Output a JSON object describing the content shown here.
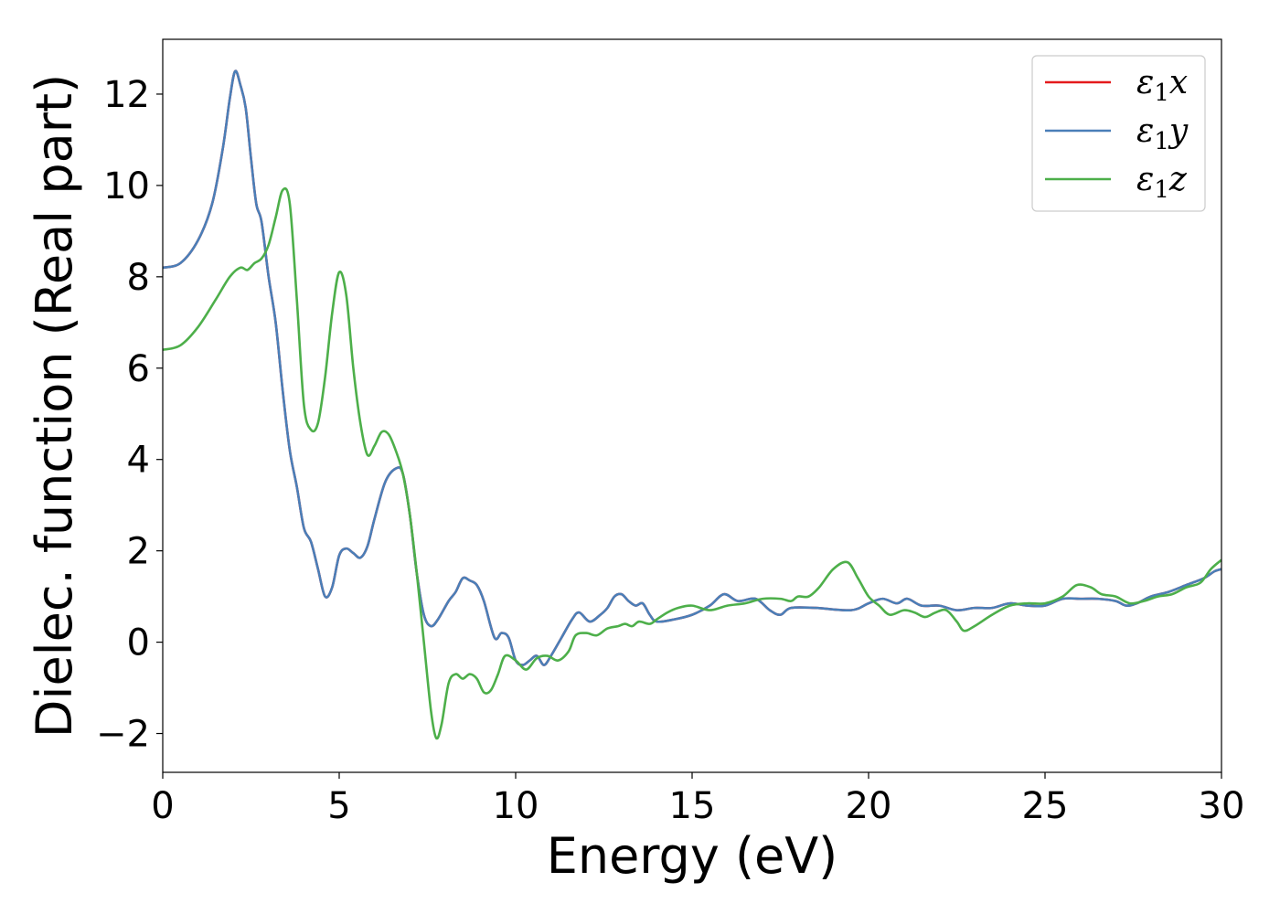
{
  "chart_data": {
    "type": "line",
    "xlabel": "Energy (eV)",
    "ylabel": "Dielec. function (Real part)",
    "xlim": [
      0,
      30
    ],
    "ylim": [
      -2.85,
      13.2
    ],
    "xticks": [
      0,
      5,
      10,
      15,
      20,
      25,
      30
    ],
    "xtick_labels": [
      "0",
      "5",
      "10",
      "15",
      "20",
      "25",
      "30"
    ],
    "yticks": [
      -2,
      0,
      2,
      4,
      6,
      8,
      10,
      12
    ],
    "ytick_labels": [
      "−2",
      "0",
      "2",
      "4",
      "6",
      "8",
      "10",
      "12"
    ],
    "grid": false,
    "legend_position": "top-right",
    "series": [
      {
        "name": "ε1x",
        "legend": {
          "base": "ε",
          "sub": "1",
          "tail": "x"
        },
        "color": "#e41a1c",
        "points": [
          [
            0,
            8.2
          ],
          [
            0.5,
            8.3
          ],
          [
            1.0,
            8.8
          ],
          [
            1.4,
            9.6
          ],
          [
            1.7,
            10.8
          ],
          [
            1.9,
            11.9
          ],
          [
            2.05,
            12.5
          ],
          [
            2.2,
            12.2
          ],
          [
            2.35,
            11.7
          ],
          [
            2.5,
            10.6
          ],
          [
            2.65,
            9.6
          ],
          [
            2.8,
            9.2
          ],
          [
            3.0,
            8.0
          ],
          [
            3.2,
            7.0
          ],
          [
            3.4,
            5.5
          ],
          [
            3.6,
            4.2
          ],
          [
            3.8,
            3.4
          ],
          [
            4.0,
            2.5
          ],
          [
            4.2,
            2.2
          ],
          [
            4.4,
            1.6
          ],
          [
            4.6,
            1.0
          ],
          [
            4.8,
            1.2
          ],
          [
            5.0,
            1.9
          ],
          [
            5.2,
            2.05
          ],
          [
            5.4,
            1.95
          ],
          [
            5.6,
            1.85
          ],
          [
            5.8,
            2.1
          ],
          [
            6.0,
            2.7
          ],
          [
            6.3,
            3.5
          ],
          [
            6.6,
            3.8
          ],
          [
            6.8,
            3.7
          ],
          [
            7.0,
            2.8
          ],
          [
            7.2,
            1.5
          ],
          [
            7.4,
            0.6
          ],
          [
            7.6,
            0.35
          ],
          [
            7.8,
            0.5
          ],
          [
            8.1,
            0.9
          ],
          [
            8.3,
            1.1
          ],
          [
            8.5,
            1.4
          ],
          [
            8.7,
            1.35
          ],
          [
            8.9,
            1.25
          ],
          [
            9.1,
            0.9
          ],
          [
            9.4,
            0.1
          ],
          [
            9.6,
            0.2
          ],
          [
            9.8,
            0.1
          ],
          [
            10.0,
            -0.4
          ],
          [
            10.2,
            -0.5
          ],
          [
            10.4,
            -0.4
          ],
          [
            10.6,
            -0.3
          ],
          [
            10.8,
            -0.5
          ],
          [
            11.0,
            -0.3
          ],
          [
            11.3,
            0.1
          ],
          [
            11.6,
            0.5
          ],
          [
            11.8,
            0.65
          ],
          [
            12.1,
            0.45
          ],
          [
            12.4,
            0.6
          ],
          [
            12.6,
            0.75
          ],
          [
            12.8,
            1.0
          ],
          [
            13.0,
            1.05
          ],
          [
            13.2,
            0.9
          ],
          [
            13.4,
            0.8
          ],
          [
            13.6,
            0.85
          ],
          [
            13.8,
            0.6
          ],
          [
            14.0,
            0.45
          ],
          [
            14.5,
            0.5
          ],
          [
            15.0,
            0.6
          ],
          [
            15.5,
            0.8
          ],
          [
            15.9,
            1.05
          ],
          [
            16.3,
            0.9
          ],
          [
            16.8,
            0.95
          ],
          [
            17.2,
            0.7
          ],
          [
            17.5,
            0.6
          ],
          [
            17.8,
            0.75
          ],
          [
            18.5,
            0.75
          ],
          [
            19.5,
            0.7
          ],
          [
            20.0,
            0.85
          ],
          [
            20.4,
            0.95
          ],
          [
            20.8,
            0.85
          ],
          [
            21.1,
            0.95
          ],
          [
            21.5,
            0.8
          ],
          [
            22.0,
            0.8
          ],
          [
            22.5,
            0.7
          ],
          [
            23.0,
            0.75
          ],
          [
            23.5,
            0.75
          ],
          [
            24.0,
            0.85
          ],
          [
            24.5,
            0.8
          ],
          [
            25.0,
            0.8
          ],
          [
            25.5,
            0.95
          ],
          [
            26.0,
            0.95
          ],
          [
            26.5,
            0.95
          ],
          [
            27.0,
            0.9
          ],
          [
            27.3,
            0.8
          ],
          [
            27.6,
            0.85
          ],
          [
            28.0,
            1.0
          ],
          [
            28.5,
            1.1
          ],
          [
            29.0,
            1.25
          ],
          [
            29.5,
            1.4
          ],
          [
            29.8,
            1.55
          ],
          [
            30.0,
            1.6
          ]
        ]
      },
      {
        "name": "ε1y",
        "legend": {
          "base": "ε",
          "sub": "1",
          "tail": "y"
        },
        "color": "#4a7fb8",
        "points": [
          [
            0,
            8.2
          ],
          [
            0.5,
            8.3
          ],
          [
            1.0,
            8.8
          ],
          [
            1.4,
            9.6
          ],
          [
            1.7,
            10.8
          ],
          [
            1.9,
            11.9
          ],
          [
            2.05,
            12.5
          ],
          [
            2.2,
            12.2
          ],
          [
            2.35,
            11.7
          ],
          [
            2.5,
            10.6
          ],
          [
            2.65,
            9.6
          ],
          [
            2.8,
            9.2
          ],
          [
            3.0,
            8.0
          ],
          [
            3.2,
            7.0
          ],
          [
            3.4,
            5.5
          ],
          [
            3.6,
            4.2
          ],
          [
            3.8,
            3.4
          ],
          [
            4.0,
            2.5
          ],
          [
            4.2,
            2.2
          ],
          [
            4.4,
            1.6
          ],
          [
            4.6,
            1.0
          ],
          [
            4.8,
            1.2
          ],
          [
            5.0,
            1.9
          ],
          [
            5.2,
            2.05
          ],
          [
            5.4,
            1.95
          ],
          [
            5.6,
            1.85
          ],
          [
            5.8,
            2.1
          ],
          [
            6.0,
            2.7
          ],
          [
            6.3,
            3.5
          ],
          [
            6.6,
            3.8
          ],
          [
            6.8,
            3.7
          ],
          [
            7.0,
            2.8
          ],
          [
            7.2,
            1.5
          ],
          [
            7.4,
            0.6
          ],
          [
            7.6,
            0.35
          ],
          [
            7.8,
            0.5
          ],
          [
            8.1,
            0.9
          ],
          [
            8.3,
            1.1
          ],
          [
            8.5,
            1.4
          ],
          [
            8.7,
            1.35
          ],
          [
            8.9,
            1.25
          ],
          [
            9.1,
            0.9
          ],
          [
            9.4,
            0.1
          ],
          [
            9.6,
            0.2
          ],
          [
            9.8,
            0.1
          ],
          [
            10.0,
            -0.4
          ],
          [
            10.2,
            -0.5
          ],
          [
            10.4,
            -0.4
          ],
          [
            10.6,
            -0.3
          ],
          [
            10.8,
            -0.5
          ],
          [
            11.0,
            -0.3
          ],
          [
            11.3,
            0.1
          ],
          [
            11.6,
            0.5
          ],
          [
            11.8,
            0.65
          ],
          [
            12.1,
            0.45
          ],
          [
            12.4,
            0.6
          ],
          [
            12.6,
            0.75
          ],
          [
            12.8,
            1.0
          ],
          [
            13.0,
            1.05
          ],
          [
            13.2,
            0.9
          ],
          [
            13.4,
            0.8
          ],
          [
            13.6,
            0.85
          ],
          [
            13.8,
            0.6
          ],
          [
            14.0,
            0.45
          ],
          [
            14.5,
            0.5
          ],
          [
            15.0,
            0.6
          ],
          [
            15.5,
            0.8
          ],
          [
            15.9,
            1.05
          ],
          [
            16.3,
            0.9
          ],
          [
            16.8,
            0.95
          ],
          [
            17.2,
            0.7
          ],
          [
            17.5,
            0.6
          ],
          [
            17.8,
            0.75
          ],
          [
            18.5,
            0.75
          ],
          [
            19.5,
            0.7
          ],
          [
            20.0,
            0.85
          ],
          [
            20.4,
            0.95
          ],
          [
            20.8,
            0.85
          ],
          [
            21.1,
            0.95
          ],
          [
            21.5,
            0.8
          ],
          [
            22.0,
            0.8
          ],
          [
            22.5,
            0.7
          ],
          [
            23.0,
            0.75
          ],
          [
            23.5,
            0.75
          ],
          [
            24.0,
            0.85
          ],
          [
            24.5,
            0.8
          ],
          [
            25.0,
            0.8
          ],
          [
            25.5,
            0.95
          ],
          [
            26.0,
            0.95
          ],
          [
            26.5,
            0.95
          ],
          [
            27.0,
            0.9
          ],
          [
            27.3,
            0.8
          ],
          [
            27.6,
            0.85
          ],
          [
            28.0,
            1.0
          ],
          [
            28.5,
            1.1
          ],
          [
            29.0,
            1.25
          ],
          [
            29.5,
            1.4
          ],
          [
            29.8,
            1.55
          ],
          [
            30.0,
            1.6
          ]
        ]
      },
      {
        "name": "ε1z",
        "legend": {
          "base": "ε",
          "sub": "1",
          "tail": "z"
        },
        "color": "#4daf4a",
        "points": [
          [
            0,
            6.4
          ],
          [
            0.5,
            6.5
          ],
          [
            1.0,
            6.9
          ],
          [
            1.5,
            7.5
          ],
          [
            1.9,
            8.0
          ],
          [
            2.2,
            8.2
          ],
          [
            2.4,
            8.15
          ],
          [
            2.6,
            8.3
          ],
          [
            2.8,
            8.4
          ],
          [
            3.0,
            8.7
          ],
          [
            3.2,
            9.3
          ],
          [
            3.4,
            9.9
          ],
          [
            3.6,
            9.6
          ],
          [
            3.8,
            7.5
          ],
          [
            4.0,
            5.2
          ],
          [
            4.2,
            4.65
          ],
          [
            4.4,
            4.8
          ],
          [
            4.6,
            5.8
          ],
          [
            4.8,
            7.2
          ],
          [
            5.0,
            8.1
          ],
          [
            5.2,
            7.6
          ],
          [
            5.4,
            6.0
          ],
          [
            5.6,
            4.8
          ],
          [
            5.8,
            4.1
          ],
          [
            6.0,
            4.3
          ],
          [
            6.2,
            4.6
          ],
          [
            6.4,
            4.55
          ],
          [
            6.6,
            4.2
          ],
          [
            6.8,
            3.7
          ],
          [
            7.0,
            2.8
          ],
          [
            7.2,
            1.5
          ],
          [
            7.4,
            0.0
          ],
          [
            7.6,
            -1.5
          ],
          [
            7.75,
            -2.1
          ],
          [
            7.9,
            -1.8
          ],
          [
            8.1,
            -0.9
          ],
          [
            8.3,
            -0.7
          ],
          [
            8.5,
            -0.8
          ],
          [
            8.7,
            -0.7
          ],
          [
            8.9,
            -0.8
          ],
          [
            9.1,
            -1.1
          ],
          [
            9.3,
            -1.05
          ],
          [
            9.5,
            -0.7
          ],
          [
            9.7,
            -0.3
          ],
          [
            10.0,
            -0.4
          ],
          [
            10.3,
            -0.6
          ],
          [
            10.6,
            -0.35
          ],
          [
            10.9,
            -0.3
          ],
          [
            11.2,
            -0.4
          ],
          [
            11.5,
            -0.2
          ],
          [
            11.7,
            0.15
          ],
          [
            12.0,
            0.2
          ],
          [
            12.3,
            0.15
          ],
          [
            12.6,
            0.3
          ],
          [
            12.9,
            0.35
          ],
          [
            13.1,
            0.4
          ],
          [
            13.3,
            0.35
          ],
          [
            13.5,
            0.45
          ],
          [
            13.8,
            0.4
          ],
          [
            14.0,
            0.5
          ],
          [
            14.3,
            0.65
          ],
          [
            14.6,
            0.75
          ],
          [
            15.0,
            0.8
          ],
          [
            15.5,
            0.7
          ],
          [
            16.0,
            0.8
          ],
          [
            16.5,
            0.85
          ],
          [
            17.0,
            0.95
          ],
          [
            17.5,
            0.95
          ],
          [
            17.8,
            0.9
          ],
          [
            18.0,
            1.0
          ],
          [
            18.3,
            1.0
          ],
          [
            18.6,
            1.2
          ],
          [
            19.0,
            1.6
          ],
          [
            19.4,
            1.75
          ],
          [
            19.7,
            1.4
          ],
          [
            20.0,
            1.0
          ],
          [
            20.3,
            0.8
          ],
          [
            20.6,
            0.6
          ],
          [
            21.0,
            0.7
          ],
          [
            21.3,
            0.65
          ],
          [
            21.6,
            0.55
          ],
          [
            21.9,
            0.65
          ],
          [
            22.2,
            0.7
          ],
          [
            22.5,
            0.45
          ],
          [
            22.7,
            0.25
          ],
          [
            23.0,
            0.35
          ],
          [
            23.5,
            0.6
          ],
          [
            24.0,
            0.8
          ],
          [
            24.5,
            0.85
          ],
          [
            25.0,
            0.85
          ],
          [
            25.5,
            1.0
          ],
          [
            25.9,
            1.25
          ],
          [
            26.3,
            1.2
          ],
          [
            26.6,
            1.05
          ],
          [
            27.0,
            1.0
          ],
          [
            27.4,
            0.85
          ],
          [
            27.8,
            0.9
          ],
          [
            28.2,
            1.0
          ],
          [
            28.6,
            1.05
          ],
          [
            29.0,
            1.2
          ],
          [
            29.4,
            1.3
          ],
          [
            29.7,
            1.6
          ],
          [
            30.0,
            1.8
          ]
        ]
      }
    ]
  }
}
